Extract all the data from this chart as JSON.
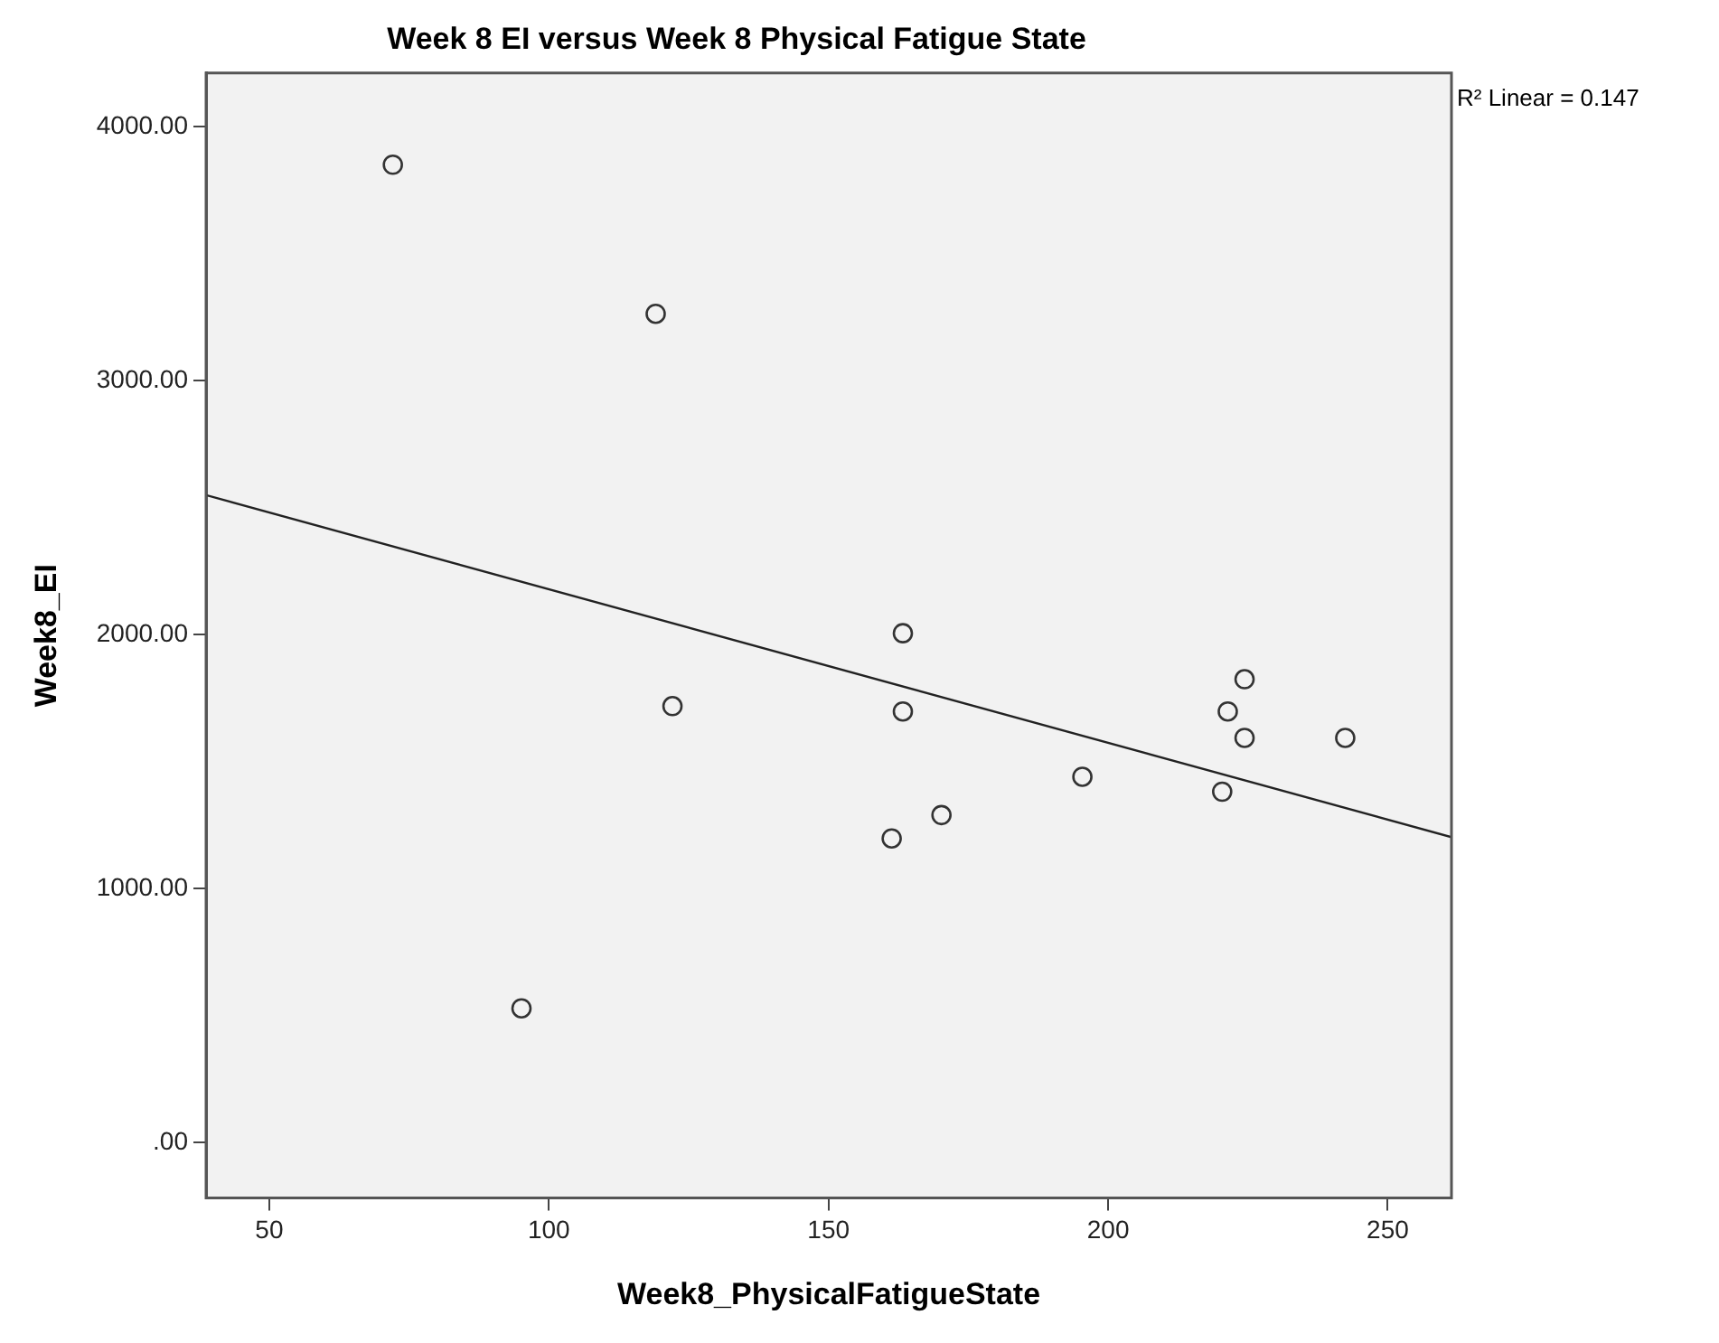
{
  "chart_data": {
    "type": "scatter",
    "title": "Week 8 EI versus Week 8 Physical Fatigue State",
    "xlabel": "Week8_PhysicalFatigueState",
    "ylabel": "Week8_EI",
    "annotations": [
      "R² Linear = 0.147"
    ],
    "series": [
      {
        "color": "#333333",
        "marker": "circle",
        "x": [
          72.1,
          119.1,
          122.1,
          95.1,
          163.3,
          163.3,
          161.3,
          170.2,
          195.4,
          220.4,
          221.4,
          224.4,
          224.4,
          242.4
        ],
        "values": [
          3849,
          3262,
          1717,
          527,
          2004,
          1696,
          1196,
          1288,
          1439,
          1380,
          1696,
          1823,
          1592,
          1592
        ]
      },
      {
        "type": "line",
        "color": "#222222",
        "marker": "none",
        "x": [
          38.7,
          261.4
        ],
        "values": [
          2548,
          1201
        ]
      }
    ],
    "xlim": [
      38.7,
      261.4
    ],
    "ylim": [
      -220,
      4210
    ],
    "xticks": [
      50,
      100,
      150,
      200,
      250
    ],
    "yticks": [
      {
        "value": 0,
        "label": ".00"
      },
      {
        "value": 1000,
        "label": "1000.00"
      },
      {
        "value": 2000,
        "label": "2000.00"
      },
      {
        "value": 3000,
        "label": "3000.00"
      },
      {
        "value": 4000,
        "label": "4000.00"
      }
    ],
    "grid": false,
    "legend": false
  }
}
